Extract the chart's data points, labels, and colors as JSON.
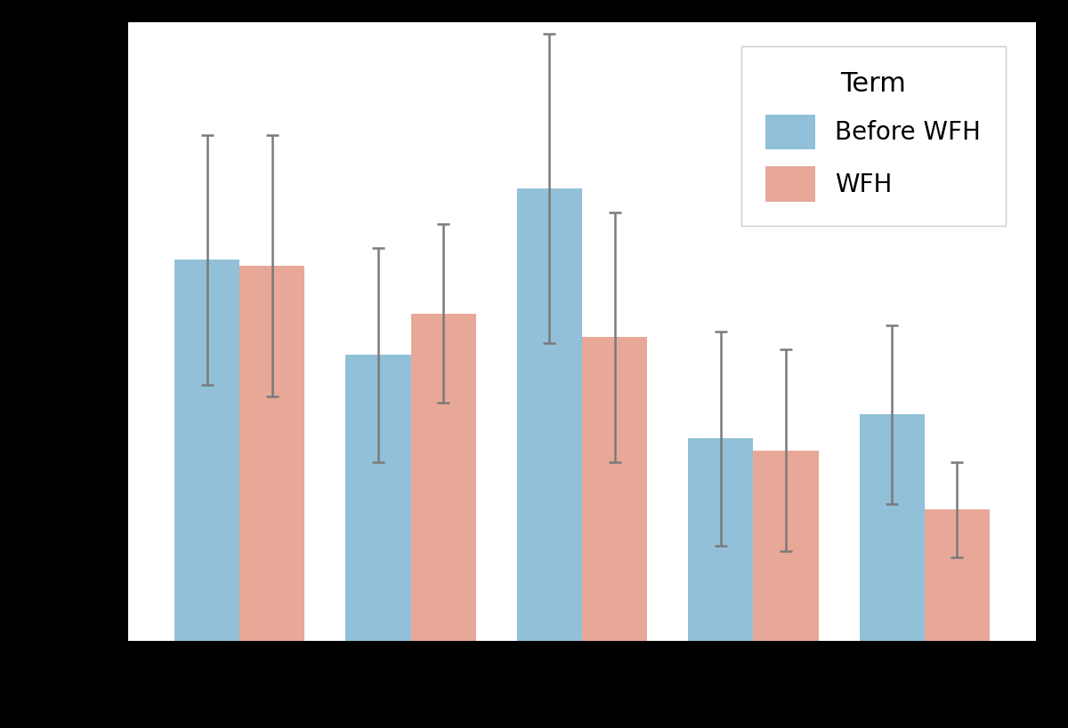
{
  "before_wfh_values": [
    3200,
    2400,
    3800,
    1700,
    1900
  ],
  "wfh_values": [
    3150,
    2750,
    2550,
    1600,
    1100
  ],
  "before_wfh_errors": [
    1050,
    900,
    1300,
    900,
    750
  ],
  "wfh_errors": [
    1100,
    750,
    1050,
    850,
    400
  ],
  "bar_color_before": "#92c0d8",
  "bar_color_wfh": "#e8a898",
  "error_color": "#7a7a7a",
  "background_color": "#ffffff",
  "outer_background": "#000000",
  "legend_title": "Term",
  "legend_before": "Before WFH",
  "legend_wfh": "WFH",
  "n_groups": 5,
  "bar_width": 0.38,
  "ylim": [
    0,
    5200
  ],
  "figsize": [
    12.0,
    8.19
  ]
}
